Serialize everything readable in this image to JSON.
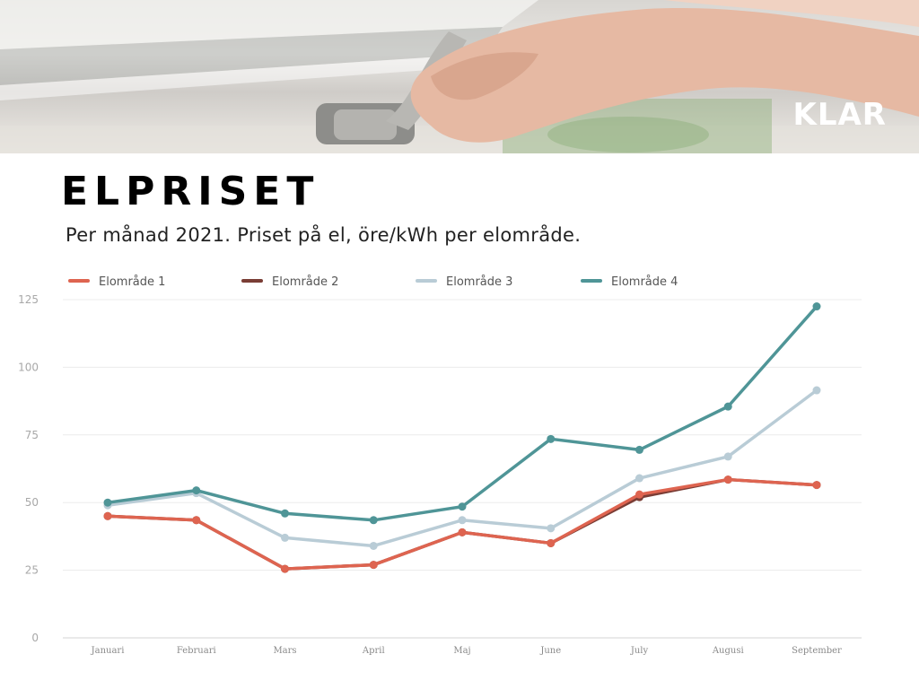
{
  "header": {
    "brand": "KLAR",
    "title": "ELPRISET",
    "subtitle": "Per månad 2021. Priset på el, öre/kWh per elområde."
  },
  "chart_data": {
    "type": "line",
    "categories": [
      "Januari",
      "Februari",
      "Mars",
      "April",
      "Maj",
      "June",
      "July",
      "Augusi",
      "September"
    ],
    "ylim": [
      0,
      125
    ],
    "yticks": [
      0,
      25,
      50,
      75,
      100,
      125
    ],
    "grid": true,
    "legend_position": "top",
    "series": [
      {
        "name": "Elområde 1",
        "color": "#de6450",
        "values": [
          45,
          43.5,
          25.5,
          27,
          39,
          35,
          53,
          58.5,
          56.5
        ]
      },
      {
        "name": "Elområde 2",
        "color": "#7a3d35",
        "values": [
          45,
          43.5,
          25.5,
          27,
          39,
          35,
          52,
          58.5,
          56.5
        ]
      },
      {
        "name": "Elområde 3",
        "color": "#b9ccd6",
        "values": [
          49,
          53.5,
          37,
          34,
          43.5,
          40.5,
          59,
          67,
          91.5
        ]
      },
      {
        "name": "Elområde 4",
        "color": "#4f9597",
        "values": [
          50,
          54.5,
          46,
          43.5,
          48.5,
          73.5,
          69.5,
          85.5,
          122.5
        ]
      }
    ]
  }
}
